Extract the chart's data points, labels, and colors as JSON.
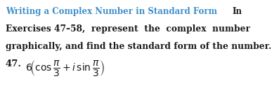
{
  "background_color": "#ffffff",
  "cyan_color": "#3d8fc9",
  "dark_color": "#1a1a1a",
  "line1_cyan": "Writing a Complex Number in Standard Form",
  "line1_dark": "In",
  "line2": "Exercises 47–58,  represent  the  complex  number",
  "line3": "graphically, and find the standard form of the number.",
  "number_label": "47.",
  "expr": "$6\\!\\left(\\cos\\dfrac{\\pi}{3} + i\\,\\sin\\dfrac{\\pi}{3}\\right)$",
  "font_size_line1": 8.5,
  "font_size_body": 8.8,
  "font_size_expr": 9.5,
  "figwidth": 3.97,
  "figheight": 1.23,
  "dpi": 100
}
